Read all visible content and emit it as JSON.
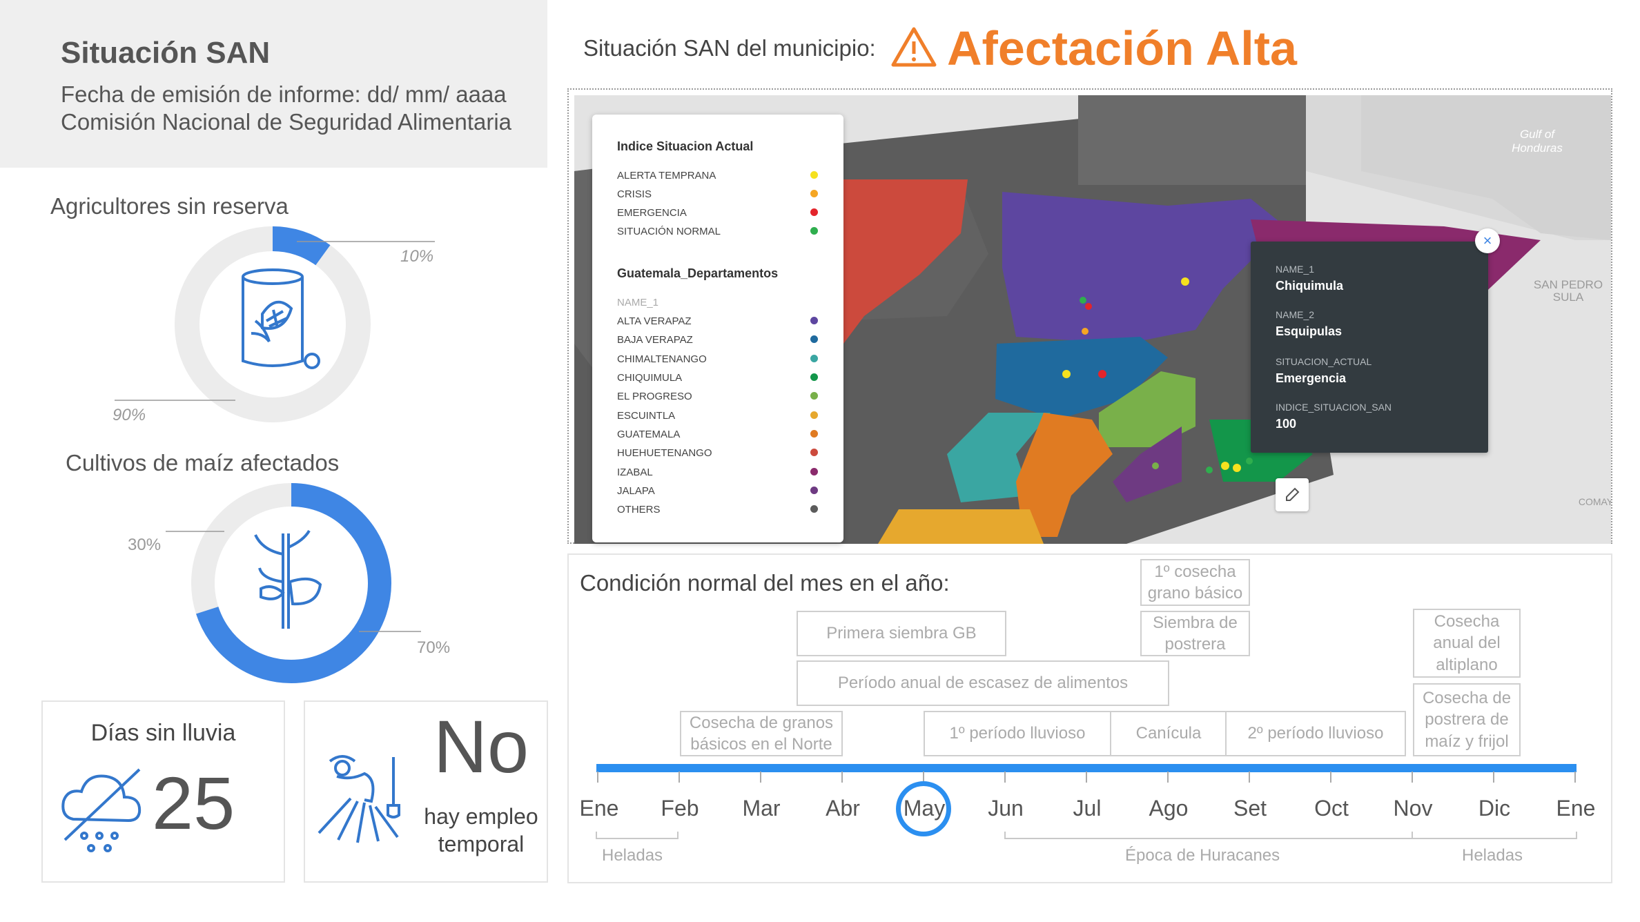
{
  "header": {
    "title": "Situación SAN",
    "emission_date": "Fecha de emisión de informe: dd/ mm/ aaaa",
    "commission": "Comisión Nacional de Seguridad Alimentaria"
  },
  "status": {
    "label": "Situación SAN del municipio:",
    "value": "Afectación Alta",
    "color": "#f07f2a"
  },
  "farmers": {
    "title": "Agricultores sin reserva",
    "without_reserve_pct": "10%",
    "with_reserve_pct": "90%",
    "fraction": 0.1,
    "icon": "corn-silo-icon"
  },
  "crops": {
    "title": "Cultivos de maíz afectados",
    "unaffected_pct": "30%",
    "affected_pct": "70%",
    "fraction": 0.7,
    "icon": "corn-plant-icon"
  },
  "rain": {
    "title": "Días sin lluvia",
    "value": "25",
    "icon": "no-rain-cloud-icon"
  },
  "employment": {
    "big": "No",
    "line1": "hay empleo",
    "line2": "temporal",
    "icon": "farm-worker-icon"
  },
  "map": {
    "labels": {
      "gulf1": "Gulf of",
      "gulf2": "Honduras",
      "sps1": "SAN PEDRO",
      "sps2": "SULA",
      "comay": "COMAY"
    },
    "legend": {
      "title1": "Indice Situacion Actual",
      "status_items": [
        {
          "label": "ALERTA TEMPRANA",
          "color": "#f5e11f"
        },
        {
          "label": "CRISIS",
          "color": "#f5a623"
        },
        {
          "label": "EMERGENCIA",
          "color": "#e3242b"
        },
        {
          "label": "SITUACIÓN NORMAL",
          "color": "#2fae4e"
        }
      ],
      "title2": "Guatemala_Departamentos",
      "field": "NAME_1",
      "dept_items": [
        {
          "label": "ALTA VERAPAZ",
          "color": "#5d46a0"
        },
        {
          "label": "BAJA VERAPAZ",
          "color": "#1f6a9e"
        },
        {
          "label": "CHIMALTENANGO",
          "color": "#3aa6a2"
        },
        {
          "label": "CHIQUIMULA",
          "color": "#13964a"
        },
        {
          "label": "EL PROGRESO",
          "color": "#79b04a"
        },
        {
          "label": "ESCUINTLA",
          "color": "#e6a82e"
        },
        {
          "label": "GUATEMALA",
          "color": "#e07b22"
        },
        {
          "label": "HUEHUETENANGO",
          "color": "#cc4a3d"
        },
        {
          "label": "IZABAL",
          "color": "#8a2a6c"
        },
        {
          "label": "JALAPA",
          "color": "#6e3a82"
        },
        {
          "label": "OTHERS",
          "color": "#5c5c5c"
        }
      ]
    },
    "popup": {
      "k1": "NAME_1",
      "v1": "Chiquimula",
      "k2": "NAME_2",
      "v2": "Esquipulas",
      "k3": "SITUACION_ACTUAL",
      "v3": "Emergencia",
      "k4": "INDICE_SITUACION_SAN",
      "v4": "100"
    }
  },
  "calendar": {
    "title": "Condición normal del mes en el año:",
    "current_month": "May",
    "months": [
      "Ene",
      "Feb",
      "Mar",
      "Abr",
      "May",
      "Jun",
      "Jul",
      "Ago",
      "Set",
      "Oct",
      "Nov",
      "Dic",
      "Ene"
    ],
    "events": {
      "cosecha1": "1º cosecha",
      "cosecha1b": "grano básico",
      "primera_siembra": "Primera siembra GB",
      "siembra_postrera1": "Siembra de",
      "siembra_postrera2": "postrera",
      "escasez": "Período anual de escasez de alimentos",
      "cosecha_norte1": "Cosecha de granos",
      "cosecha_norte2": "básicos en el Norte",
      "lluvioso1": "1º período lluvioso",
      "canicula": "Canícula",
      "lluvioso2": "2º período lluvioso",
      "altiplano1": "Cosecha",
      "altiplano2": "anual del",
      "altiplano3": "altiplano",
      "postrera1": "Cosecha de",
      "postrera2": "postrera de",
      "postrera3": "maíz y frijol"
    },
    "bottom": {
      "heladas1": "Heladas",
      "huracanes": "Época de Huracanes",
      "heladas2": "Heladas"
    },
    "bar_color": "#2b8ff0"
  }
}
